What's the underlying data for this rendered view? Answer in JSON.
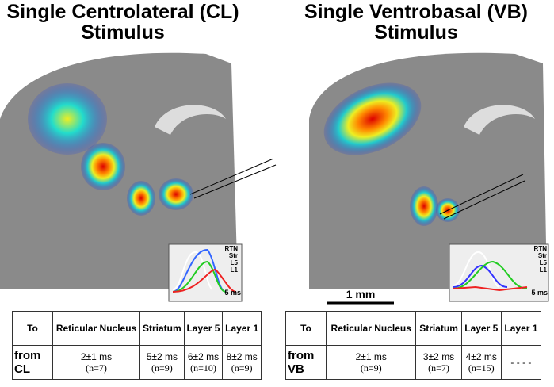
{
  "panels": [
    {
      "title": [
        "Single Centrolateral (CL)",
        "Stimulus"
      ],
      "inset": {
        "legend": [
          "RTN",
          "Str",
          "L5",
          "L1"
        ],
        "scale": "5 ms"
      },
      "table": {
        "header": [
          "To",
          "Reticular Nucleus",
          "Striatum",
          "Layer 5",
          "Layer 1"
        ],
        "rows": [
          [
            "from CL",
            [
              "2±1 ms",
              "(n=7)"
            ],
            [
              "5±2 ms",
              "(n=9)"
            ],
            [
              "6±2 ms",
              "(n=10)"
            ],
            [
              "8±2 ms",
              "(n=9)"
            ]
          ]
        ]
      }
    },
    {
      "title": [
        "Single Ventrobasal (VB)",
        "Stimulus"
      ],
      "inset": {
        "legend": [
          "RTN",
          "Str",
          "L5",
          "L1"
        ],
        "scale": "5 ms"
      },
      "table": {
        "header": [
          "To",
          "Reticular Nucleus",
          "Striatum",
          "Layer 5",
          "Layer 1"
        ],
        "rows": [
          [
            "from VB",
            [
              "2±1 ms",
              "(n=9)"
            ],
            [
              "3±2 ms",
              "(n=7)"
            ],
            [
              "4±2 ms",
              "(n=15)"
            ],
            [
              "- - - -"
            ]
          ]
        ]
      }
    }
  ],
  "scale_bar": "1 mm"
}
